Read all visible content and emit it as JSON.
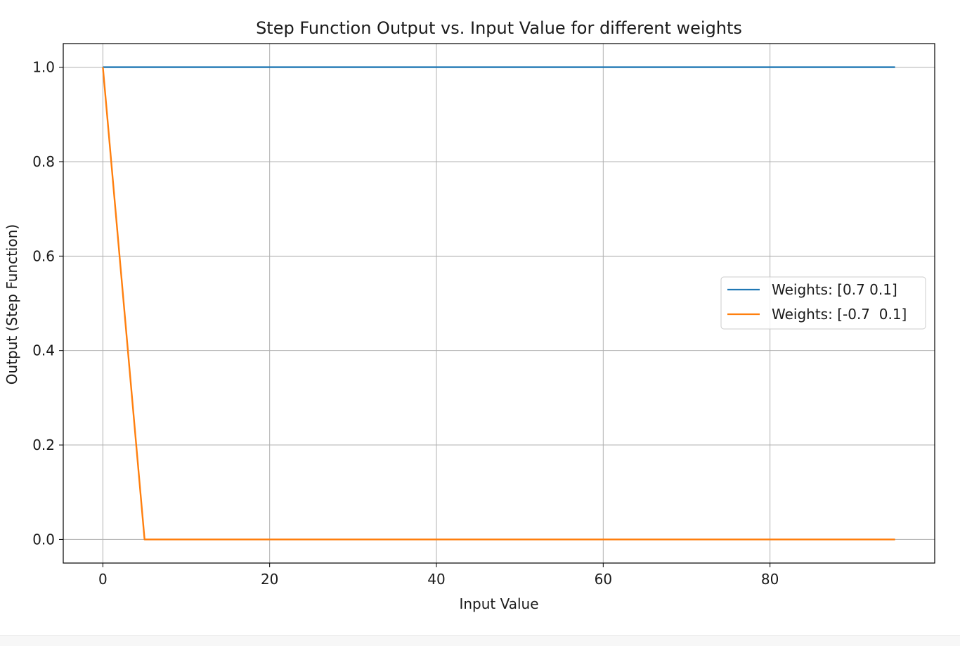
{
  "chart_data": {
    "type": "line",
    "title": "Step Function Output vs. Input Value for different weights",
    "xlabel": "Input Value",
    "ylabel": "Output (Step Function)",
    "xlim": [
      -4.75,
      99.75
    ],
    "ylim": [
      -0.05,
      1.05
    ],
    "xticks": [
      0,
      20,
      40,
      60,
      80
    ],
    "yticks": [
      0.0,
      0.2,
      0.4,
      0.6,
      0.8,
      1.0
    ],
    "grid": true,
    "legend_position": "center right",
    "series": [
      {
        "name": "Weights: [0.7 0.1]",
        "color": "#1f77b4",
        "x": [
          0,
          5,
          10,
          15,
          20,
          25,
          30,
          35,
          40,
          45,
          50,
          55,
          60,
          65,
          70,
          75,
          80,
          85,
          90,
          95
        ],
        "y": [
          1,
          1,
          1,
          1,
          1,
          1,
          1,
          1,
          1,
          1,
          1,
          1,
          1,
          1,
          1,
          1,
          1,
          1,
          1,
          1
        ]
      },
      {
        "name": "Weights: [-0.7  0.1]",
        "color": "#ff7f0e",
        "x": [
          0,
          5,
          10,
          15,
          20,
          25,
          30,
          35,
          40,
          45,
          50,
          55,
          60,
          65,
          70,
          75,
          80,
          85,
          90,
          95
        ],
        "y": [
          1,
          0,
          0,
          0,
          0,
          0,
          0,
          0,
          0,
          0,
          0,
          0,
          0,
          0,
          0,
          0,
          0,
          0,
          0,
          0
        ]
      }
    ]
  }
}
